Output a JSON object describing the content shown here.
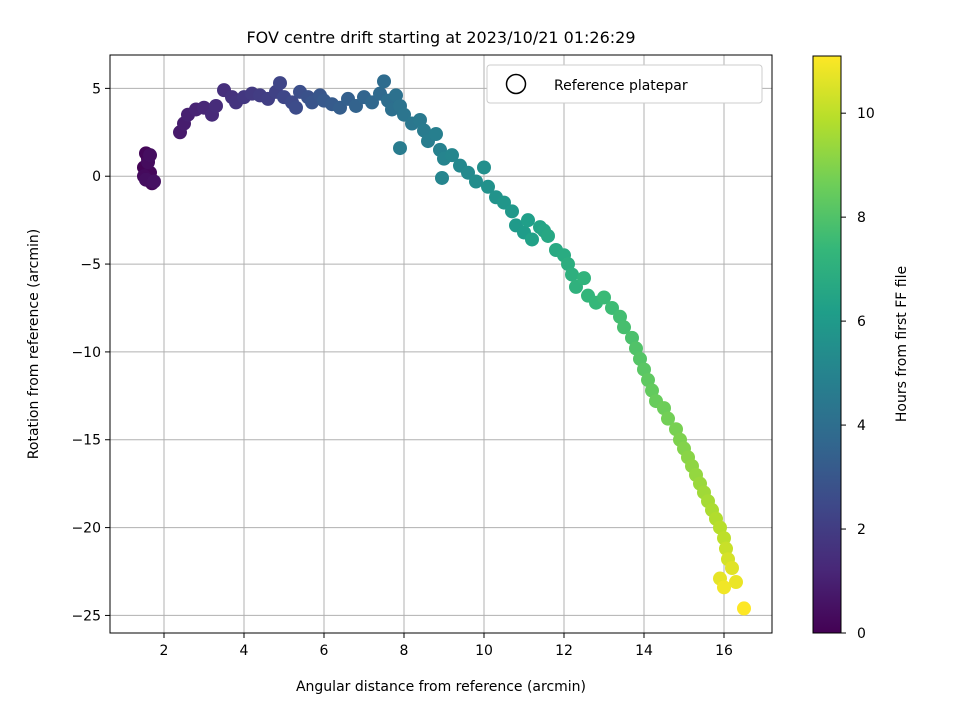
{
  "chart_data": {
    "type": "scatter",
    "title": "FOV centre drift starting at 2023/10/21 01:26:29",
    "xlabel": "Angular distance from reference (arcmin)",
    "ylabel": "Rotation from reference (arcmin)",
    "xlim": [
      0.65,
      17.2
    ],
    "ylim": [
      -26.0,
      6.9
    ],
    "xticks": [
      2,
      4,
      6,
      8,
      10,
      12,
      14,
      16
    ],
    "yticks": [
      5,
      0,
      -5,
      -10,
      -15,
      -20,
      -25
    ],
    "xtick_labels": [
      "2",
      "4",
      "6",
      "8",
      "10",
      "12",
      "14",
      "16"
    ],
    "ytick_labels": [
      "5",
      "0",
      "−5",
      "−10",
      "−15",
      "−20",
      "−25"
    ],
    "grid": true,
    "legend": {
      "position": "top-right",
      "entries": [
        "Reference platepar"
      ]
    },
    "colorbar": {
      "label": "Hours from first FF file",
      "range": [
        0,
        11.1
      ],
      "ticks": [
        0,
        2,
        4,
        6,
        8,
        10
      ],
      "tick_labels": [
        "0",
        "2",
        "4",
        "6",
        "8",
        "10"
      ],
      "colormap": "viridis",
      "colormap_stops": [
        "#440154",
        "#482878",
        "#3e4989",
        "#31688e",
        "#26828e",
        "#1f9e89",
        "#35b779",
        "#6ece58",
        "#b5de2b",
        "#fde725"
      ]
    },
    "series": [
      {
        "points": [
          {
            "x": 1.5,
            "y": 0.5,
            "t": 0.05
          },
          {
            "x": 1.6,
            "y": 1.0,
            "t": 0.1
          },
          {
            "x": 1.55,
            "y": 1.3,
            "t": 0.15
          },
          {
            "x": 1.65,
            "y": 0.2,
            "t": 0.2
          },
          {
            "x": 1.7,
            "y": -0.4,
            "t": 0.25
          },
          {
            "x": 1.5,
            "y": 0.0,
            "t": 0.3
          },
          {
            "x": 1.6,
            "y": 0.8,
            "t": 0.35
          },
          {
            "x": 1.65,
            "y": 1.2,
            "t": 0.4
          },
          {
            "x": 1.55,
            "y": -0.2,
            "t": 0.45
          },
          {
            "x": 1.75,
            "y": -0.3,
            "t": 0.5
          },
          {
            "x": 2.4,
            "y": 2.5,
            "t": 0.8
          },
          {
            "x": 2.5,
            "y": 3.0,
            "t": 0.9
          },
          {
            "x": 2.6,
            "y": 3.5,
            "t": 1.0
          },
          {
            "x": 2.8,
            "y": 3.8,
            "t": 1.1
          },
          {
            "x": 3.0,
            "y": 3.9,
            "t": 1.2
          },
          {
            "x": 3.2,
            "y": 3.5,
            "t": 1.3
          },
          {
            "x": 3.3,
            "y": 4.0,
            "t": 1.4
          },
          {
            "x": 3.5,
            "y": 4.9,
            "t": 1.5
          },
          {
            "x": 3.7,
            "y": 4.5,
            "t": 1.6
          },
          {
            "x": 3.8,
            "y": 4.2,
            "t": 1.7
          },
          {
            "x": 4.0,
            "y": 4.5,
            "t": 1.8
          },
          {
            "x": 4.2,
            "y": 4.7,
            "t": 1.9
          },
          {
            "x": 4.4,
            "y": 4.6,
            "t": 2.0
          },
          {
            "x": 4.6,
            "y": 4.4,
            "t": 2.1
          },
          {
            "x": 4.8,
            "y": 4.8,
            "t": 2.2
          },
          {
            "x": 4.9,
            "y": 5.3,
            "t": 2.3
          },
          {
            "x": 5.0,
            "y": 4.5,
            "t": 2.4
          },
          {
            "x": 5.2,
            "y": 4.2,
            "t": 2.5
          },
          {
            "x": 5.3,
            "y": 3.9,
            "t": 2.6
          },
          {
            "x": 5.4,
            "y": 4.8,
            "t": 2.7
          },
          {
            "x": 5.6,
            "y": 4.5,
            "t": 2.8
          },
          {
            "x": 5.7,
            "y": 4.2,
            "t": 2.9
          },
          {
            "x": 5.9,
            "y": 4.6,
            "t": 3.0
          },
          {
            "x": 6.0,
            "y": 4.3,
            "t": 3.1
          },
          {
            "x": 6.2,
            "y": 4.1,
            "t": 3.2
          },
          {
            "x": 6.4,
            "y": 3.9,
            "t": 3.3
          },
          {
            "x": 6.6,
            "y": 4.4,
            "t": 3.4
          },
          {
            "x": 6.8,
            "y": 4.0,
            "t": 3.5
          },
          {
            "x": 7.0,
            "y": 4.5,
            "t": 3.6
          },
          {
            "x": 7.2,
            "y": 4.2,
            "t": 3.7
          },
          {
            "x": 7.4,
            "y": 4.7,
            "t": 3.8
          },
          {
            "x": 7.5,
            "y": 5.4,
            "t": 3.9
          },
          {
            "x": 7.6,
            "y": 4.3,
            "t": 4.0
          },
          {
            "x": 7.7,
            "y": 3.8,
            "t": 4.1
          },
          {
            "x": 7.8,
            "y": 4.6,
            "t": 4.15
          },
          {
            "x": 7.9,
            "y": 4.0,
            "t": 4.2
          },
          {
            "x": 8.0,
            "y": 3.5,
            "t": 4.3
          },
          {
            "x": 8.2,
            "y": 3.0,
            "t": 4.4
          },
          {
            "x": 8.4,
            "y": 3.2,
            "t": 4.5
          },
          {
            "x": 8.5,
            "y": 2.6,
            "t": 4.6
          },
          {
            "x": 7.9,
            "y": 1.6,
            "t": 4.65
          },
          {
            "x": 8.6,
            "y": 2.0,
            "t": 4.7
          },
          {
            "x": 8.8,
            "y": 2.4,
            "t": 4.8
          },
          {
            "x": 8.9,
            "y": 1.5,
            "t": 4.9
          },
          {
            "x": 9.0,
            "y": 1.0,
            "t": 5.0
          },
          {
            "x": 8.95,
            "y": -0.1,
            "t": 5.05
          },
          {
            "x": 9.2,
            "y": 1.2,
            "t": 5.1
          },
          {
            "x": 9.4,
            "y": 0.6,
            "t": 5.2
          },
          {
            "x": 9.6,
            "y": 0.2,
            "t": 5.3
          },
          {
            "x": 9.8,
            "y": -0.3,
            "t": 5.4
          },
          {
            "x": 10.0,
            "y": 0.5,
            "t": 5.5
          },
          {
            "x": 10.1,
            "y": -0.6,
            "t": 5.6
          },
          {
            "x": 10.3,
            "y": -1.2,
            "t": 5.7
          },
          {
            "x": 10.5,
            "y": -1.5,
            "t": 5.8
          },
          {
            "x": 10.7,
            "y": -2.0,
            "t": 5.9
          },
          {
            "x": 10.8,
            "y": -2.8,
            "t": 6.0
          },
          {
            "x": 11.0,
            "y": -3.2,
            "t": 6.1
          },
          {
            "x": 11.1,
            "y": -2.5,
            "t": 6.2
          },
          {
            "x": 11.2,
            "y": -3.6,
            "t": 6.3
          },
          {
            "x": 11.4,
            "y": -2.9,
            "t": 6.4
          },
          {
            "x": 11.5,
            "y": -3.1,
            "t": 6.5
          },
          {
            "x": 11.6,
            "y": -3.4,
            "t": 6.6
          },
          {
            "x": 11.8,
            "y": -4.2,
            "t": 6.7
          },
          {
            "x": 12.0,
            "y": -4.5,
            "t": 6.8
          },
          {
            "x": 12.1,
            "y": -5.0,
            "t": 6.9
          },
          {
            "x": 12.2,
            "y": -5.6,
            "t": 7.0
          },
          {
            "x": 12.3,
            "y": -6.3,
            "t": 7.1
          },
          {
            "x": 12.5,
            "y": -5.8,
            "t": 7.2
          },
          {
            "x": 12.6,
            "y": -6.8,
            "t": 7.3
          },
          {
            "x": 12.8,
            "y": -7.2,
            "t": 7.4
          },
          {
            "x": 13.0,
            "y": -6.9,
            "t": 7.5
          },
          {
            "x": 13.2,
            "y": -7.5,
            "t": 7.6
          },
          {
            "x": 13.4,
            "y": -8.0,
            "t": 7.7
          },
          {
            "x": 13.5,
            "y": -8.6,
            "t": 7.8
          },
          {
            "x": 13.7,
            "y": -9.2,
            "t": 7.9
          },
          {
            "x": 13.8,
            "y": -9.8,
            "t": 8.0
          },
          {
            "x": 13.9,
            "y": -10.4,
            "t": 8.1
          },
          {
            "x": 14.0,
            "y": -11.0,
            "t": 8.2
          },
          {
            "x": 14.1,
            "y": -11.6,
            "t": 8.3
          },
          {
            "x": 14.2,
            "y": -12.2,
            "t": 8.4
          },
          {
            "x": 14.3,
            "y": -12.8,
            "t": 8.5
          },
          {
            "x": 14.5,
            "y": -13.2,
            "t": 8.6
          },
          {
            "x": 14.6,
            "y": -13.8,
            "t": 8.7
          },
          {
            "x": 14.8,
            "y": -14.4,
            "t": 8.8
          },
          {
            "x": 14.9,
            "y": -15.0,
            "t": 8.9
          },
          {
            "x": 15.0,
            "y": -15.5,
            "t": 9.0
          },
          {
            "x": 15.1,
            "y": -16.0,
            "t": 9.1
          },
          {
            "x": 15.2,
            "y": -16.5,
            "t": 9.2
          },
          {
            "x": 15.3,
            "y": -17.0,
            "t": 9.3
          },
          {
            "x": 15.4,
            "y": -17.5,
            "t": 9.4
          },
          {
            "x": 15.5,
            "y": -18.0,
            "t": 9.5
          },
          {
            "x": 15.6,
            "y": -18.5,
            "t": 9.6
          },
          {
            "x": 15.7,
            "y": -19.0,
            "t": 9.7
          },
          {
            "x": 15.8,
            "y": -19.5,
            "t": 9.8
          },
          {
            "x": 15.9,
            "y": -20.0,
            "t": 9.9
          },
          {
            "x": 16.0,
            "y": -20.6,
            "t": 10.0
          },
          {
            "x": 16.05,
            "y": -21.2,
            "t": 10.2
          },
          {
            "x": 16.1,
            "y": -21.8,
            "t": 10.4
          },
          {
            "x": 16.2,
            "y": -22.3,
            "t": 10.6
          },
          {
            "x": 15.9,
            "y": -22.9,
            "t": 10.7
          },
          {
            "x": 16.3,
            "y": -23.1,
            "t": 10.8
          },
          {
            "x": 16.0,
            "y": -23.4,
            "t": 10.9
          },
          {
            "x": 16.5,
            "y": -24.6,
            "t": 11.1
          }
        ]
      }
    ]
  }
}
